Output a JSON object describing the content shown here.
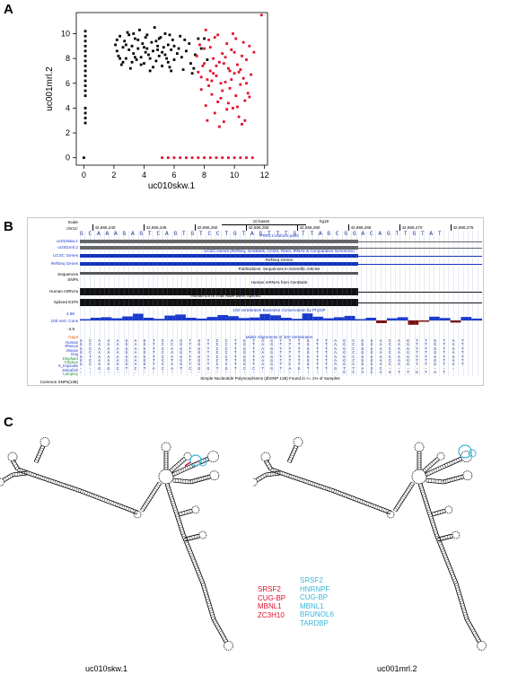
{
  "panels": {
    "a_label": "A",
    "b_label": "B",
    "c_label": "C"
  },
  "chart_data": {
    "type": "scatter",
    "xlabel": "uc010skw.1",
    "ylabel": "uc001mrl.2",
    "xlim": [
      -0.5,
      12.2
    ],
    "ylim": [
      -0.6,
      11.7
    ],
    "xticks": [
      0,
      2,
      4,
      6,
      8,
      10,
      12
    ],
    "yticks": [
      0,
      2,
      4,
      6,
      8,
      10
    ],
    "grid": false,
    "colors": {
      "black_series": "#000000",
      "red_series": "#e0102d"
    },
    "series": [
      {
        "color": "black",
        "points": [
          [
            0.1,
            10.2
          ],
          [
            0.1,
            9.8
          ],
          [
            0.1,
            9.4
          ],
          [
            0.1,
            9.0
          ],
          [
            0.1,
            8.6
          ],
          [
            0.1,
            8.2
          ],
          [
            0.1,
            7.8
          ],
          [
            0.1,
            7.4
          ],
          [
            0.1,
            7.0
          ],
          [
            0.1,
            6.6
          ],
          [
            0.1,
            6.2
          ],
          [
            0.1,
            5.8
          ],
          [
            0.1,
            5.4
          ],
          [
            0.1,
            5.0
          ],
          [
            0.1,
            4.0
          ],
          [
            0.1,
            3.6
          ],
          [
            0.1,
            3.2
          ],
          [
            0.1,
            2.8
          ],
          [
            0.0,
            0.0
          ],
          [
            2.1,
            9.1
          ],
          [
            2.2,
            8.6
          ],
          [
            2.3,
            8.2
          ],
          [
            2.4,
            9.8
          ],
          [
            2.5,
            7.5
          ],
          [
            2.6,
            8.9
          ],
          [
            2.7,
            9.4
          ],
          [
            2.8,
            8.0
          ],
          [
            2.9,
            10.1
          ],
          [
            3.0,
            8.7
          ],
          [
            3.1,
            7.2
          ],
          [
            3.2,
            9.0
          ],
          [
            3.3,
            8.4
          ],
          [
            3.4,
            9.6
          ],
          [
            3.5,
            7.9
          ],
          [
            3.6,
            8.8
          ],
          [
            3.7,
            10.3
          ],
          [
            3.8,
            8.1
          ],
          [
            3.9,
            9.2
          ],
          [
            4.0,
            7.6
          ],
          [
            4.1,
            8.5
          ],
          [
            4.2,
            9.9
          ],
          [
            4.3,
            8.3
          ],
          [
            4.4,
            7.0
          ],
          [
            4.5,
            9.3
          ],
          [
            4.6,
            8.6
          ],
          [
            4.7,
            10.5
          ],
          [
            4.8,
            7.8
          ],
          [
            4.9,
            9.0
          ],
          [
            5.0,
            8.2
          ],
          [
            5.1,
            9.7
          ],
          [
            5.2,
            7.4
          ],
          [
            5.3,
            8.9
          ],
          [
            5.4,
            10.0
          ],
          [
            5.5,
            8.0
          ],
          [
            5.6,
            9.1
          ],
          [
            5.7,
            7.3
          ],
          [
            5.8,
            8.7
          ],
          [
            5.9,
            9.5
          ],
          [
            6.0,
            7.9
          ],
          [
            6.2,
            8.4
          ],
          [
            6.4,
            9.8
          ],
          [
            6.6,
            7.1
          ],
          [
            6.8,
            8.6
          ],
          [
            7.0,
            9.2
          ],
          [
            7.2,
            6.8
          ],
          [
            7.4,
            8.3
          ],
          [
            7.6,
            9.6
          ],
          [
            2.4,
            8.0
          ],
          [
            2.8,
            9.1
          ],
          [
            3.2,
            7.7
          ],
          [
            3.6,
            9.5
          ],
          [
            4.0,
            8.9
          ],
          [
            4.4,
            8.0
          ],
          [
            4.8,
            9.4
          ],
          [
            5.2,
            8.5
          ],
          [
            5.6,
            7.7
          ],
          [
            6.0,
            9.0
          ],
          [
            2.2,
            9.5
          ],
          [
            3.0,
            9.9
          ],
          [
            3.4,
            8.1
          ],
          [
            3.8,
            7.5
          ],
          [
            4.2,
            8.8
          ],
          [
            4.6,
            7.3
          ],
          [
            5.0,
            9.6
          ],
          [
            5.4,
            8.3
          ],
          [
            5.8,
            7.0
          ],
          [
            6.3,
            8.8
          ],
          [
            6.7,
            9.5
          ],
          [
            7.1,
            7.6
          ],
          [
            2.6,
            7.7
          ],
          [
            3.3,
            10.0
          ],
          [
            4.1,
            9.7
          ],
          [
            4.9,
            8.7
          ],
          [
            5.7,
            9.9
          ],
          [
            6.5,
            8.1
          ],
          [
            7.3,
            7.2
          ],
          [
            7.8,
            8.8
          ],
          [
            8.0,
            9.6
          ],
          [
            8.2,
            7.9
          ]
        ]
      },
      {
        "color": "red",
        "points": [
          [
            7.5,
            8.2
          ],
          [
            7.6,
            6.9
          ],
          [
            7.7,
            9.1
          ],
          [
            7.8,
            5.5
          ],
          [
            7.9,
            7.4
          ],
          [
            8.0,
            8.8
          ],
          [
            8.1,
            4.2
          ],
          [
            8.2,
            6.3
          ],
          [
            8.3,
            9.5
          ],
          [
            8.4,
            7.0
          ],
          [
            8.5,
            5.1
          ],
          [
            8.6,
            8.0
          ],
          [
            8.7,
            3.6
          ],
          [
            8.8,
            6.6
          ],
          [
            8.9,
            9.9
          ],
          [
            9.0,
            7.7
          ],
          [
            9.1,
            4.8
          ],
          [
            9.2,
            8.4
          ],
          [
            9.3,
            2.9
          ],
          [
            9.4,
            6.1
          ],
          [
            9.5,
            9.2
          ],
          [
            9.6,
            7.2
          ],
          [
            9.7,
            5.6
          ],
          [
            9.8,
            8.7
          ],
          [
            9.9,
            4.0
          ],
          [
            10.0,
            6.8
          ],
          [
            10.1,
            9.6
          ],
          [
            10.2,
            7.5
          ],
          [
            10.3,
            3.3
          ],
          [
            10.4,
            5.9
          ],
          [
            10.5,
            8.2
          ],
          [
            10.6,
            6.4
          ],
          [
            10.7,
            4.6
          ],
          [
            10.8,
            7.9
          ],
          [
            10.9,
            5.2
          ],
          [
            11.0,
            9.0
          ],
          [
            11.1,
            6.7
          ],
          [
            11.3,
            8.5
          ],
          [
            11.8,
            11.5
          ],
          [
            8.0,
            7.6
          ],
          [
            8.3,
            5.8
          ],
          [
            8.6,
            6.8
          ],
          [
            8.9,
            4.5
          ],
          [
            9.2,
            5.4
          ],
          [
            9.5,
            3.9
          ],
          [
            9.8,
            6.3
          ],
          [
            10.1,
            5.0
          ],
          [
            10.4,
            7.1
          ],
          [
            10.7,
            3.0
          ],
          [
            11.0,
            4.9
          ],
          [
            8.4,
            8.9
          ],
          [
            8.8,
            7.4
          ],
          [
            9.1,
            6.0
          ],
          [
            9.4,
            8.1
          ],
          [
            9.7,
            7.0
          ],
          [
            10.0,
            8.5
          ],
          [
            10.3,
            6.9
          ],
          [
            10.6,
            9.3
          ],
          [
            8.2,
            3.0
          ],
          [
            9.0,
            2.5
          ],
          [
            9.6,
            4.4
          ],
          [
            10.2,
            4.1
          ],
          [
            8.5,
            6.2
          ],
          [
            9.3,
            7.6
          ],
          [
            10.5,
            2.7
          ],
          [
            7.8,
            6.5
          ],
          [
            8.7,
            9.7
          ],
          [
            9.9,
            10.0
          ],
          [
            10.8,
            6.0
          ],
          [
            8.1,
            10.3
          ],
          [
            5.2,
            0
          ],
          [
            5.6,
            0
          ],
          [
            6.0,
            0
          ],
          [
            6.4,
            0
          ],
          [
            6.8,
            0
          ],
          [
            7.2,
            0
          ],
          [
            7.6,
            0
          ],
          [
            8.0,
            0
          ],
          [
            8.4,
            0
          ],
          [
            8.8,
            0
          ],
          [
            9.2,
            0
          ],
          [
            9.6,
            0
          ],
          [
            10.0,
            0
          ],
          [
            10.4,
            0
          ],
          [
            10.8,
            0
          ],
          [
            11.2,
            0
          ]
        ]
      }
    ]
  },
  "browser": {
    "scale_label": "Scale",
    "chr_label": "chr12:",
    "scale_text": "10 bases",
    "assembly": "hg19",
    "positions": [
      "42,866,240",
      "42,866,245",
      "42,866,250",
      "42,866,255",
      "42,866,260",
      "42,866,265",
      "42,866,270",
      "42,866,275"
    ],
    "sequence": "G C A A A G A G T C A G T G T C C T G T A G T T T G T T A G C G G A C A G T T G T A T",
    "tracks": {
      "uc010skw": "uc010skw.1",
      "uc001mrl": "uc001mrl.2",
      "prpc": "PRRC1 isoform pairs",
      "ucsc_genes": "UCSC Genes",
      "ucsc_genes_desc": "UCSC Genes (RefSeq, GenBank, CCDS, Rfam, tRNAs & Comparative Genomics)",
      "refseq_genes": "RefSeq Genes",
      "refseq_desc": "RefSeq Genes",
      "publications": "Publications: Sequences in Scientific Articles",
      "sequences": "Sequences",
      "snps": "SNPs",
      "human_mrnas": "Human mRNAs",
      "human_mrna_desc": "Human mRNAs from GenBank",
      "spliced_ests": "Spliced ESTs",
      "est_desc": "Human ESTs That Have Been Spliced",
      "cons_max": "4.88",
      "cons_label": "100 Vert. Cons",
      "cons_desc": "100 vertebrates Basewise Conservation by PhyloP",
      "cons_min": "-4.5",
      "gaps": "Gaps",
      "multiz_desc": "Multiz Alignments of 100 Vertebrates",
      "snp_desc": "Simple Nucleotide Polymorphisms (dbSNP 138) Found in >= 1% of Samples",
      "common_snps": "Common SNPs(138)"
    },
    "species": [
      "Human",
      "Rhesus",
      "Mouse",
      "Dog",
      "Elephant",
      "Chicken",
      "X_tropicalis",
      "Zebrafish",
      "Lamprey"
    ],
    "alignments": [
      "G C A A A G A G T C A G T G T C C T G T A G T T T G T T A G C G G A C A G T T G T A T",
      "G C A A A G A G T C C G T G T C C T G T A G T T T G T T A G C G G A C A G T T G T A T",
      "G C A A A G A G T C A G T G T C C T G T A G T T T G T T A G C G G A C A G T T G T A T",
      "G C A A A G A G T C A G T G T C C T G T A G T T T G T T A G C G G A C A G T T G T A T",
      "G T A A A G A G T C A G T G T C C T G T A G T T T G T T A G C G G A C A G T T G T A T",
      "G C A A A G A G T C T G T G T C T T G T A G T T T G T T A G C G G A C A G T T G T A T",
      "G C A A A G A G T C A G T G T C C T G T A G T C T G T T A G C G G A C A G T T G T A T",
      "- - G G C T C T A C A T C G G T G T C C T G T A G T T T G T T A G C - - - - - - - -",
      "- - - - - - - - - - - - - - - - - - - - - - - - - - - - - G C A C A G T T G T A T"
    ]
  },
  "rna": {
    "left_title": "uc010skw.1",
    "right_title": "uc001mrl.2",
    "left_proteins": [
      "SRSF2",
      "CUG-BP",
      "MBNL1",
      "ZC3H10"
    ],
    "right_proteins": [
      "SRSF2",
      "HNRNPF",
      "CUG-BP",
      "MBNL1",
      "BRUNOL6",
      "TARDBP"
    ],
    "colors": {
      "red": "#e0102d",
      "cyan": "#3db5d8"
    }
  }
}
